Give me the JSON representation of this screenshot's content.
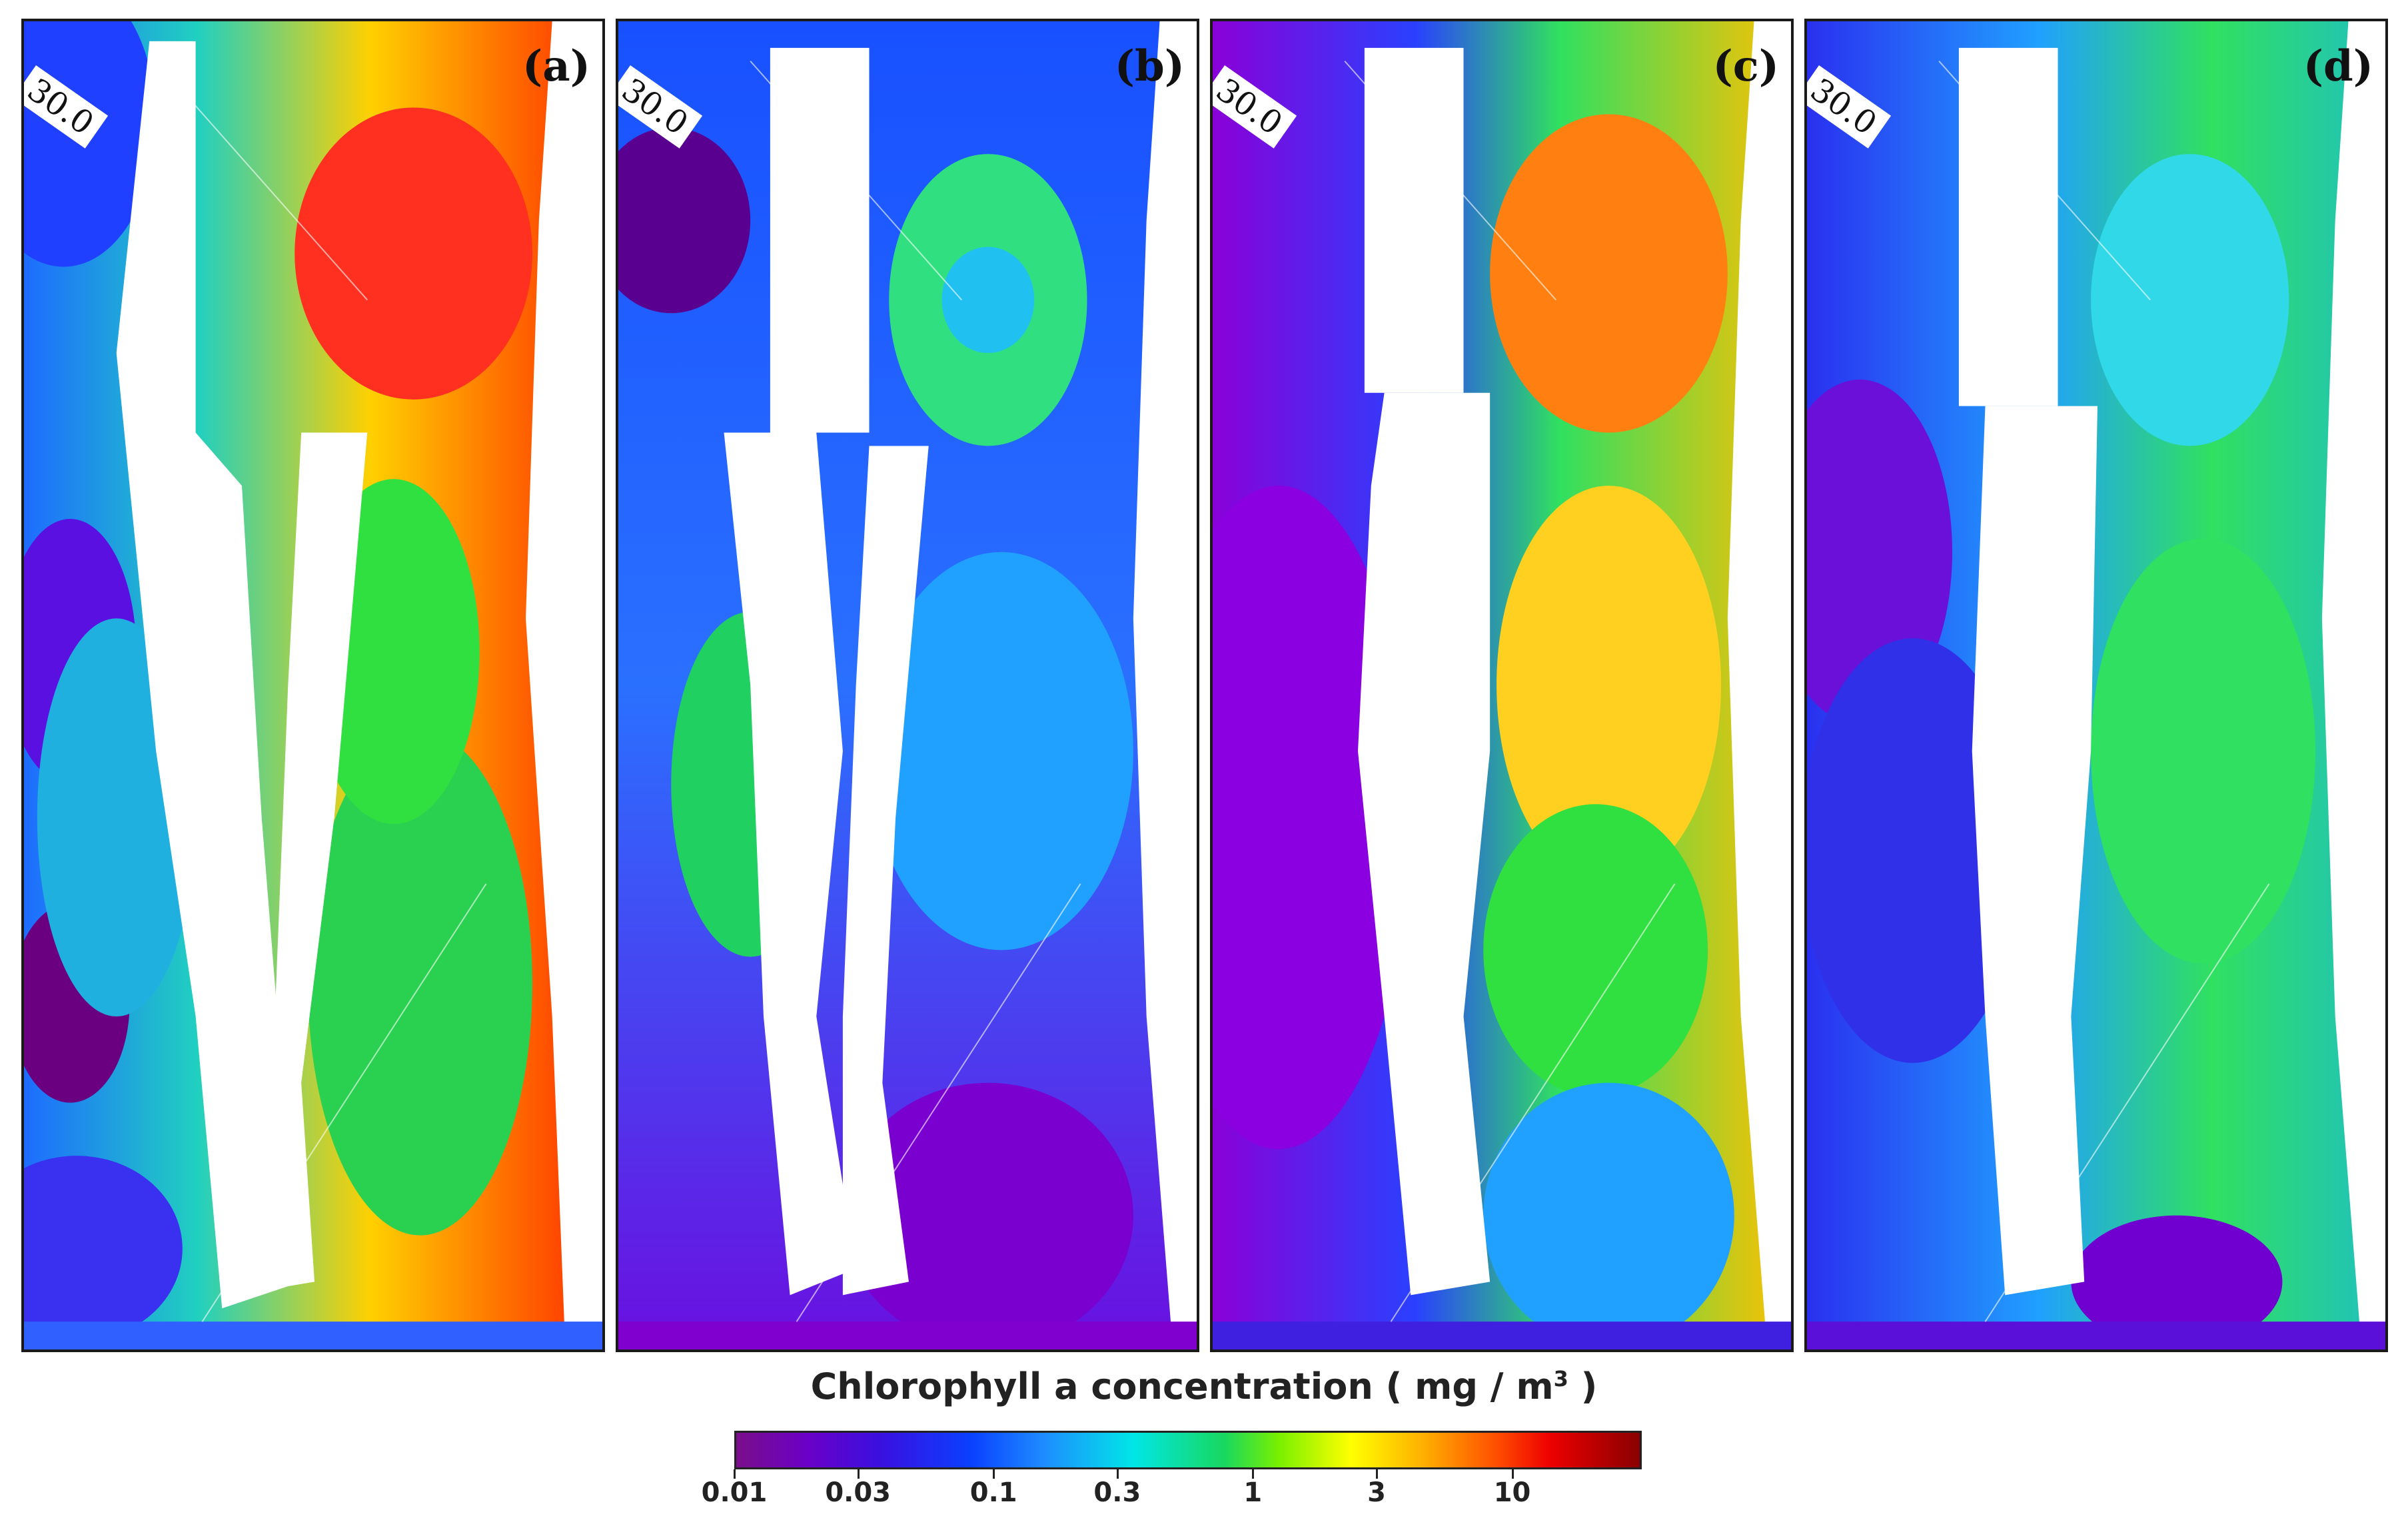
{
  "panels": [
    {
      "label": "(a)",
      "grid_label": "30.0"
    },
    {
      "label": "(b)",
      "grid_label": "30.0"
    },
    {
      "label": "(c)",
      "grid_label": "30.0"
    },
    {
      "label": "(d)",
      "grid_label": "30.0"
    }
  ],
  "colorbar": {
    "title_main": "Chlorophyll a concentration ( mg / m",
    "title_sup": "3",
    "title_end": " )",
    "tick_labels": [
      "0.01",
      "0.03",
      "0.1",
      "0.3",
      "1",
      "3",
      "10"
    ],
    "scale": "log"
  },
  "colors": {
    "low": "#7a0e8a",
    "mid": "#18d860",
    "high": "#8a0000",
    "land": "#ffffff",
    "frame": "#1a1a1a"
  }
}
